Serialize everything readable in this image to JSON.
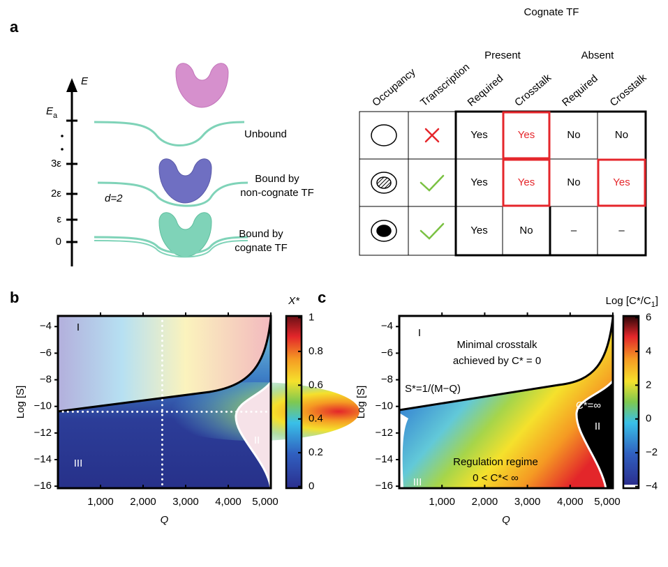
{
  "panel_a": {
    "label": "a",
    "energy_axis": {
      "label": "E",
      "ticks": [
        {
          "main": "E",
          "sub": "a"
        },
        "3ε",
        "2ε",
        "ε",
        "0"
      ]
    },
    "distance_label": "d=2",
    "states": [
      [
        "Unbound"
      ],
      [
        "Bound by",
        "non-cognate TF"
      ],
      [
        "Bound by",
        "cognate TF"
      ]
    ],
    "table": {
      "group_header": "Cognate TF",
      "subgroups": [
        "Present",
        "Absent"
      ],
      "columns": [
        "Occupancy",
        "Transcription",
        "Required",
        "Crosstalk",
        "Required",
        "Crosstalk"
      ],
      "rows": [
        [
          "Yes",
          "Yes",
          "No",
          "No"
        ],
        [
          "Yes",
          "Yes",
          "No",
          "Yes"
        ],
        [
          "Yes",
          "No",
          "–",
          "–"
        ]
      ],
      "highlighted": [
        [
          0,
          1
        ],
        [
          1,
          1
        ],
        [
          1,
          3
        ]
      ],
      "highlight_color": "#e5262b"
    }
  },
  "chart_data": [
    {
      "type": "heatmap",
      "panel_label": "b",
      "xlabel": "Q",
      "ylabel": "Log [S]",
      "xlim": [
        0,
        5000
      ],
      "ylim": [
        -16.15,
        -3.2
      ],
      "xticks": [
        {
          "value": 1000,
          "label": "1,000"
        },
        {
          "value": 2000,
          "label": "2,000"
        },
        {
          "value": 3000,
          "label": "3,000"
        },
        {
          "value": 4000,
          "label": "4,000"
        },
        {
          "value": 5000,
          "label": "5,000"
        }
      ],
      "yticks": [
        {
          "value": -16,
          "label": "−16"
        },
        {
          "value": -14,
          "label": "−14"
        },
        {
          "value": -12,
          "label": "−12"
        },
        {
          "value": -10,
          "label": "−10"
        },
        {
          "value": -8,
          "label": "−8"
        },
        {
          "value": -6,
          "label": "−6"
        },
        {
          "value": -4,
          "label": "−4"
        }
      ],
      "colorbar": {
        "label": "X*",
        "lim": [
          -0.01,
          1.01
        ],
        "ticks": [
          0,
          0.2,
          0.4,
          0.6,
          0.8,
          1
        ]
      },
      "guides": {
        "x": 2450,
        "y": -10.4
      },
      "regions": [
        "I",
        "II",
        "III"
      ]
    },
    {
      "type": "heatmap",
      "panel_label": "c",
      "xlabel": "Q",
      "ylabel": "Log [S]",
      "xlim": [
        0,
        5000
      ],
      "ylim": [
        -16.15,
        -3.2
      ],
      "xticks": [
        {
          "value": 1000,
          "label": "1,000"
        },
        {
          "value": 2000,
          "label": "2,000"
        },
        {
          "value": 3000,
          "label": "3,000"
        },
        {
          "value": 4000,
          "label": "4,000"
        },
        {
          "value": 5000,
          "label": "5,000"
        }
      ],
      "yticks": [
        {
          "value": -16,
          "label": "−16"
        },
        {
          "value": -14,
          "label": "−14"
        },
        {
          "value": -12,
          "label": "−12"
        },
        {
          "value": -10,
          "label": "−10"
        },
        {
          "value": -8,
          "label": "−8"
        },
        {
          "value": -6,
          "label": "−6"
        },
        {
          "value": -4,
          "label": "−4"
        }
      ],
      "colorbar": {
        "label": "Log [C*/C",
        "label_sub": "1",
        "label_end": "]",
        "lim": [
          -4.1,
          6.1
        ],
        "ticks": [
          {
            "value": -4,
            "label": "−4"
          },
          {
            "value": -2,
            "label": "−2"
          },
          0,
          2,
          4,
          6
        ]
      },
      "regions": [
        "I",
        "II",
        "III"
      ],
      "annotations": [
        "Minimal crosstalk",
        "achieved by C* = 0",
        "S*=1/(M−Q)",
        "C*=∞",
        "Regulation regime",
        "0 < C*< ∞"
      ]
    }
  ]
}
